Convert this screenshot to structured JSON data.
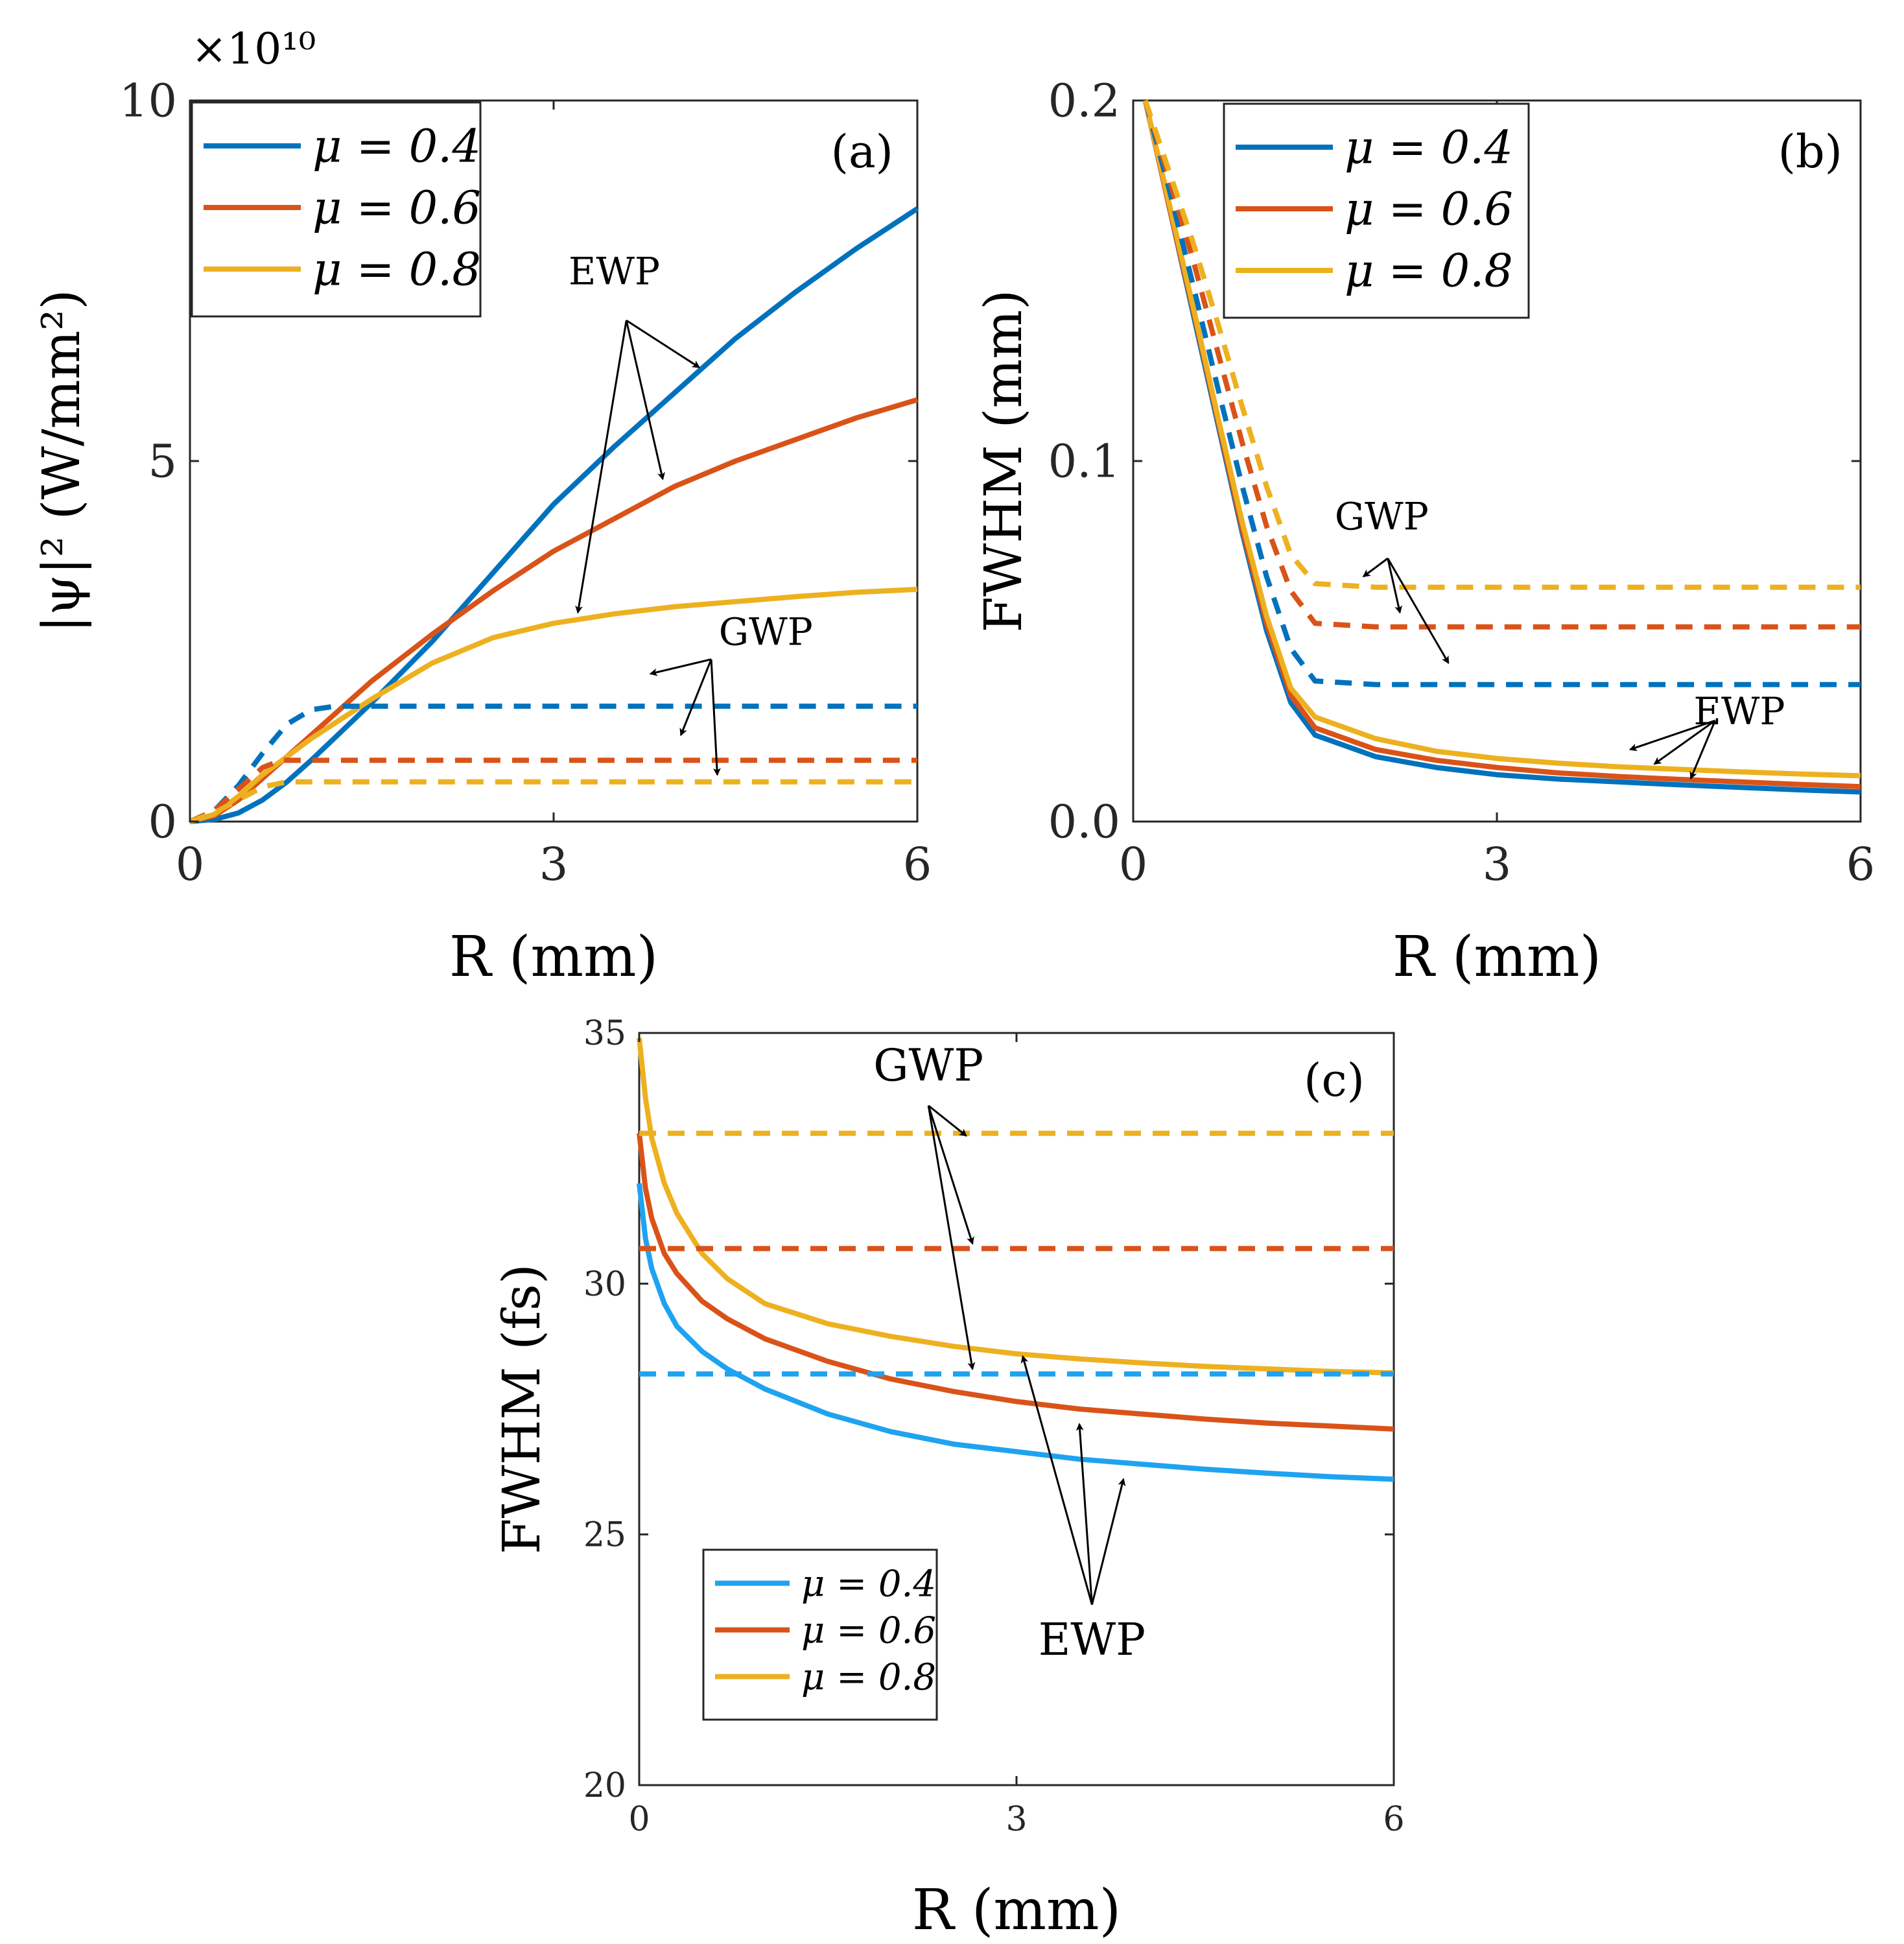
{
  "chart_data": [
    {
      "id": "a",
      "type": "line",
      "panel_label": "(a)",
      "xlabel": "R (mm)",
      "ylabel": "|ψ|² (W/mm²)",
      "y_exponent": "×10¹⁰",
      "xlim": [
        0,
        6
      ],
      "ylim": [
        0,
        10
      ],
      "xticks": [
        0,
        3,
        6
      ],
      "yticks": [
        0,
        5,
        10
      ],
      "ytick_labels": [
        "0",
        "5",
        "10"
      ],
      "legend": {
        "placement": "top-left",
        "entries": [
          "μ = 0.4",
          "μ = 0.6",
          "μ = 0.8"
        ]
      },
      "series": [
        {
          "name": "μ = 0.4 EWP",
          "style": "solid",
          "color": "#0072BD",
          "x": [
            0,
            0.2,
            0.4,
            0.6,
            0.8,
            1.0,
            1.5,
            2.0,
            2.5,
            3.0,
            3.5,
            4.0,
            4.5,
            5.0,
            5.5,
            6.0
          ],
          "y": [
            0,
            0.03,
            0.12,
            0.3,
            0.55,
            0.85,
            1.65,
            2.5,
            3.45,
            4.4,
            5.2,
            5.95,
            6.7,
            7.35,
            7.95,
            8.5
          ]
        },
        {
          "name": "μ = 0.6 EWP",
          "style": "solid",
          "color": "#D95319",
          "x": [
            0,
            0.2,
            0.4,
            0.6,
            0.8,
            1.0,
            1.5,
            2.0,
            2.5,
            3.0,
            3.5,
            4.0,
            4.5,
            5.0,
            5.5,
            6.0
          ],
          "y": [
            0,
            0.08,
            0.3,
            0.6,
            0.9,
            1.2,
            1.95,
            2.6,
            3.2,
            3.75,
            4.2,
            4.65,
            5.0,
            5.3,
            5.6,
            5.85
          ]
        },
        {
          "name": "μ = 0.8 EWP",
          "style": "solid",
          "color": "#EDB120",
          "x": [
            0,
            0.2,
            0.4,
            0.6,
            0.8,
            1.0,
            1.5,
            2.0,
            2.5,
            3.0,
            3.5,
            4.0,
            4.5,
            5.0,
            5.5,
            6.0
          ],
          "y": [
            0,
            0.1,
            0.35,
            0.65,
            0.9,
            1.15,
            1.7,
            2.2,
            2.55,
            2.75,
            2.88,
            2.98,
            3.05,
            3.12,
            3.18,
            3.22
          ]
        },
        {
          "name": "μ = 0.4 GWP",
          "style": "dashed",
          "color": "#0072BD",
          "x": [
            0,
            0.2,
            0.4,
            0.6,
            0.8,
            1.0,
            1.2,
            1.5,
            2.0,
            3.0,
            4.0,
            5.0,
            6.0
          ],
          "y": [
            0,
            0.15,
            0.5,
            0.95,
            1.35,
            1.55,
            1.6,
            1.6,
            1.6,
            1.6,
            1.6,
            1.6,
            1.6
          ]
        },
        {
          "name": "μ = 0.6 GWP",
          "style": "dashed",
          "color": "#D95319",
          "x": [
            0,
            0.2,
            0.4,
            0.6,
            0.75,
            1.0,
            2.0,
            3.0,
            4.0,
            5.0,
            6.0
          ],
          "y": [
            0,
            0.15,
            0.45,
            0.75,
            0.85,
            0.85,
            0.85,
            0.85,
            0.85,
            0.85,
            0.85
          ]
        },
        {
          "name": "μ = 0.8 GWP",
          "style": "dashed",
          "color": "#EDB120",
          "x": [
            0,
            0.2,
            0.4,
            0.6,
            0.8,
            1.0,
            2.0,
            3.0,
            4.0,
            5.0,
            6.0
          ],
          "y": [
            0,
            0.12,
            0.3,
            0.48,
            0.55,
            0.55,
            0.55,
            0.55,
            0.55,
            0.55,
            0.55
          ]
        }
      ],
      "annotations": [
        {
          "text": "EWP",
          "x": 3.5,
          "y": 7.45,
          "arrows": [
            [
              4.2,
              6.3
            ],
            [
              3.9,
              4.75
            ],
            [
              3.2,
              2.9
            ]
          ],
          "tail": [
            3.6,
            6.95
          ]
        },
        {
          "text": "GWP",
          "x": 4.75,
          "y": 2.45,
          "arrows": [
            [
              3.8,
              2.05
            ],
            [
              4.05,
              1.2
            ],
            [
              4.35,
              0.65
            ]
          ],
          "tail": [
            4.3,
            2.25
          ]
        }
      ]
    },
    {
      "id": "b",
      "type": "line",
      "panel_label": "(b)",
      "xlabel": "R (mm)",
      "ylabel": "FWHM (mm)",
      "xlim": [
        0,
        6
      ],
      "ylim": [
        0,
        0.2
      ],
      "xticks": [
        0,
        3,
        6
      ],
      "yticks": [
        0,
        0.1,
        0.2
      ],
      "ytick_labels": [
        "0.0",
        "0.1",
        "0.2"
      ],
      "legend": {
        "placement": "top-left",
        "entries": [
          "μ = 0.4",
          "μ = 0.6",
          "μ = 0.8"
        ]
      },
      "series": [
        {
          "name": "μ = 0.4 EWP",
          "style": "solid",
          "color": "#0072BD",
          "x": [
            0.1,
            0.3,
            0.5,
            0.7,
            0.9,
            1.1,
            1.3,
            1.5,
            2.0,
            2.5,
            3.0,
            3.5,
            4.0,
            4.5,
            5.0,
            5.5,
            6.0
          ],
          "y": [
            0.2,
            0.17,
            0.14,
            0.11,
            0.08,
            0.053,
            0.033,
            0.024,
            0.018,
            0.015,
            0.013,
            0.0118,
            0.011,
            0.0102,
            0.0095,
            0.0088,
            0.0082
          ]
        },
        {
          "name": "μ = 0.6 EWP",
          "style": "solid",
          "color": "#D95319",
          "x": [
            0.1,
            0.3,
            0.5,
            0.7,
            0.9,
            1.1,
            1.3,
            1.5,
            2.0,
            2.5,
            3.0,
            3.5,
            4.0,
            4.5,
            5.0,
            5.5,
            6.0
          ],
          "y": [
            0.2,
            0.17,
            0.141,
            0.111,
            0.081,
            0.055,
            0.035,
            0.026,
            0.02,
            0.017,
            0.015,
            0.0135,
            0.0125,
            0.0117,
            0.011,
            0.0103,
            0.0097
          ]
        },
        {
          "name": "μ = 0.8 EWP",
          "style": "solid",
          "color": "#EDB120",
          "x": [
            0.1,
            0.3,
            0.5,
            0.7,
            0.9,
            1.1,
            1.3,
            1.5,
            2.0,
            2.5,
            3.0,
            3.5,
            4.0,
            4.5,
            5.0,
            5.5,
            6.0
          ],
          "y": [
            0.2,
            0.171,
            0.142,
            0.112,
            0.083,
            0.057,
            0.037,
            0.029,
            0.023,
            0.0195,
            0.0175,
            0.0162,
            0.0152,
            0.0145,
            0.0138,
            0.0132,
            0.0127
          ]
        },
        {
          "name": "μ = 0.4 GWP",
          "style": "dashed",
          "color": "#0072BD",
          "x": [
            0.1,
            0.3,
            0.5,
            0.7,
            0.9,
            1.1,
            1.3,
            1.5,
            2.0,
            3.0,
            4.0,
            5.0,
            6.0
          ],
          "y": [
            0.2,
            0.175,
            0.148,
            0.12,
            0.093,
            0.068,
            0.048,
            0.039,
            0.038,
            0.038,
            0.038,
            0.038,
            0.038
          ]
        },
        {
          "name": "μ = 0.6 GWP",
          "style": "dashed",
          "color": "#D95319",
          "x": [
            0.1,
            0.3,
            0.5,
            0.7,
            0.9,
            1.1,
            1.3,
            1.5,
            2.0,
            3.0,
            4.0,
            5.0,
            6.0
          ],
          "y": [
            0.2,
            0.178,
            0.155,
            0.13,
            0.105,
            0.082,
            0.064,
            0.055,
            0.054,
            0.054,
            0.054,
            0.054,
            0.054
          ]
        },
        {
          "name": "μ = 0.8 GWP",
          "style": "dashed",
          "color": "#EDB120",
          "x": [
            0.1,
            0.3,
            0.5,
            0.7,
            0.9,
            1.1,
            1.3,
            1.5,
            2.0,
            3.0,
            4.0,
            5.0,
            6.0
          ],
          "y": [
            0.2,
            0.18,
            0.16,
            0.138,
            0.115,
            0.093,
            0.074,
            0.066,
            0.065,
            0.065,
            0.065,
            0.065,
            0.065
          ]
        }
      ],
      "annotations": [
        {
          "text": "GWP",
          "x": 2.05,
          "y": 0.081,
          "arrows": [
            [
              1.9,
              0.068
            ],
            [
              2.2,
              0.058
            ],
            [
              2.6,
              0.044
            ]
          ],
          "tail": [
            2.1,
            0.073
          ]
        },
        {
          "text": "EWP",
          "x": 5.0,
          "y": 0.027,
          "arrows": [
            [
              4.1,
              0.02
            ],
            [
              4.3,
              0.016
            ],
            [
              4.6,
              0.012
            ]
          ],
          "tail": [
            4.8,
            0.028
          ]
        }
      ]
    },
    {
      "id": "c",
      "type": "line",
      "panel_label": "(c)",
      "xlabel": "R (mm)",
      "ylabel": "FWHM (fs)",
      "xlim": [
        0,
        6
      ],
      "ylim": [
        20,
        35
      ],
      "xticks": [
        0,
        3,
        6
      ],
      "yticks": [
        20,
        25,
        30,
        35
      ],
      "ytick_labels": [
        "20",
        "25",
        "30",
        "35"
      ],
      "legend": {
        "placement": "bottom-left",
        "entries": [
          "μ = 0.4",
          "μ = 0.6",
          "μ = 0.8"
        ]
      },
      "series": [
        {
          "name": "μ = 0.4 EWP",
          "style": "solid",
          "color": "#1EA3F0",
          "x": [
            0,
            0.05,
            0.1,
            0.2,
            0.3,
            0.5,
            0.7,
            1.0,
            1.5,
            2.0,
            2.5,
            3.0,
            3.5,
            4.0,
            4.5,
            5.0,
            5.5,
            6.0
          ],
          "y": [
            32.0,
            30.9,
            30.3,
            29.6,
            29.15,
            28.65,
            28.3,
            27.9,
            27.4,
            27.05,
            26.8,
            26.65,
            26.5,
            26.4,
            26.3,
            26.22,
            26.15,
            26.1
          ]
        },
        {
          "name": "μ = 0.6 EWP",
          "style": "solid",
          "color": "#D95319",
          "x": [
            0,
            0.05,
            0.1,
            0.2,
            0.3,
            0.5,
            0.7,
            1.0,
            1.5,
            2.0,
            2.5,
            3.0,
            3.5,
            4.0,
            4.5,
            5.0,
            5.5,
            6.0
          ],
          "y": [
            33.0,
            31.9,
            31.3,
            30.6,
            30.2,
            29.65,
            29.3,
            28.9,
            28.45,
            28.1,
            27.85,
            27.65,
            27.5,
            27.4,
            27.3,
            27.22,
            27.16,
            27.1
          ]
        },
        {
          "name": "μ = 0.8 EWP",
          "style": "solid",
          "color": "#EDB120",
          "x": [
            0,
            0.05,
            0.1,
            0.2,
            0.3,
            0.5,
            0.7,
            1.0,
            1.5,
            2.0,
            2.5,
            3.0,
            3.5,
            4.0,
            4.5,
            5.0,
            5.5,
            6.0
          ],
          "y": [
            34.9,
            33.7,
            32.9,
            32.0,
            31.4,
            30.6,
            30.1,
            29.6,
            29.2,
            28.95,
            28.75,
            28.6,
            28.5,
            28.42,
            28.35,
            28.3,
            28.25,
            28.22
          ]
        },
        {
          "name": "μ = 0.4 GWP",
          "style": "dashed",
          "color": "#1EA3F0",
          "x": [
            0,
            6
          ],
          "y": [
            28.2,
            28.2
          ]
        },
        {
          "name": "μ = 0.6 GWP",
          "style": "dashed",
          "color": "#D95319",
          "x": [
            0,
            6
          ],
          "y": [
            30.7,
            30.7
          ]
        },
        {
          "name": "μ = 0.8 GWP",
          "style": "dashed",
          "color": "#EDB120",
          "x": [
            0,
            6
          ],
          "y": [
            33.0,
            33.0
          ]
        }
      ],
      "annotations": [
        {
          "text": "GWP",
          "x": 2.3,
          "y": 34.05,
          "arrows": [
            [
              2.6,
              32.95
            ],
            [
              2.65,
              30.8
            ],
            [
              2.65,
              28.3
            ]
          ],
          "tail": [
            2.3,
            33.55
          ]
        },
        {
          "text": "EWP",
          "x": 3.6,
          "y": 22.6,
          "arrows": [
            [
              3.05,
              28.55
            ],
            [
              3.5,
              27.2
            ],
            [
              3.85,
              26.1
            ]
          ],
          "tail": [
            3.6,
            23.6
          ]
        }
      ]
    }
  ]
}
